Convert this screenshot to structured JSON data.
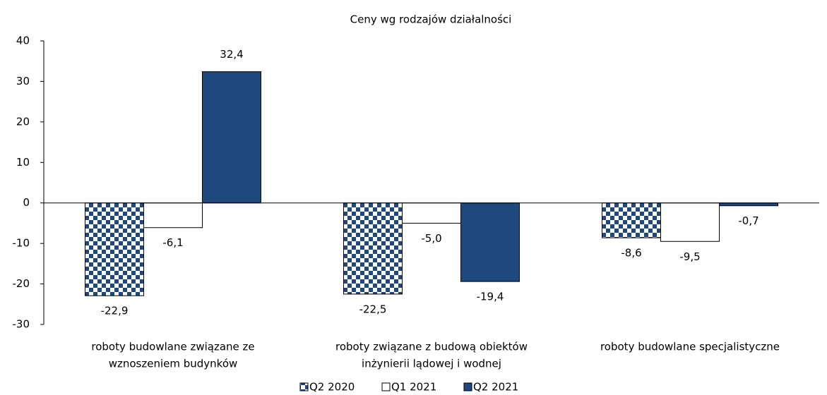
{
  "chart_data": {
    "type": "bar",
    "title": "Ceny wg rodzajów działalności",
    "categories": [
      [
        "roboty budowlane związane ze",
        "wznoszeniem budynków"
      ],
      [
        "roboty związane z budową obiektów",
        "inżynierii lądowej i wodnej"
      ],
      [
        "roboty budowlane specjalistyczne"
      ]
    ],
    "series": [
      {
        "name": "Q2 2020",
        "color": "#1f497d",
        "pattern": "checkered",
        "values": [
          -22.9,
          -22.5,
          -8.6
        ],
        "value_labels": [
          "-22,9",
          "-22,5",
          "-8,6"
        ]
      },
      {
        "name": "Q1 2021",
        "color": "#ffffff",
        "values": [
          -6.1,
          -5.0,
          -9.5
        ],
        "value_labels": [
          "-6,1",
          "-5,0",
          "-9,5"
        ]
      },
      {
        "name": "Q2 2021",
        "color": "#1f497d",
        "values": [
          32.4,
          -19.4,
          -0.7
        ],
        "value_labels": [
          "32,4",
          "-19,4",
          "-0,7"
        ]
      }
    ],
    "ylim": [
      -30,
      40
    ],
    "yticks": [
      -30,
      -20,
      -10,
      0,
      10,
      20,
      30,
      40
    ],
    "grid": false,
    "legend": "bottom"
  }
}
